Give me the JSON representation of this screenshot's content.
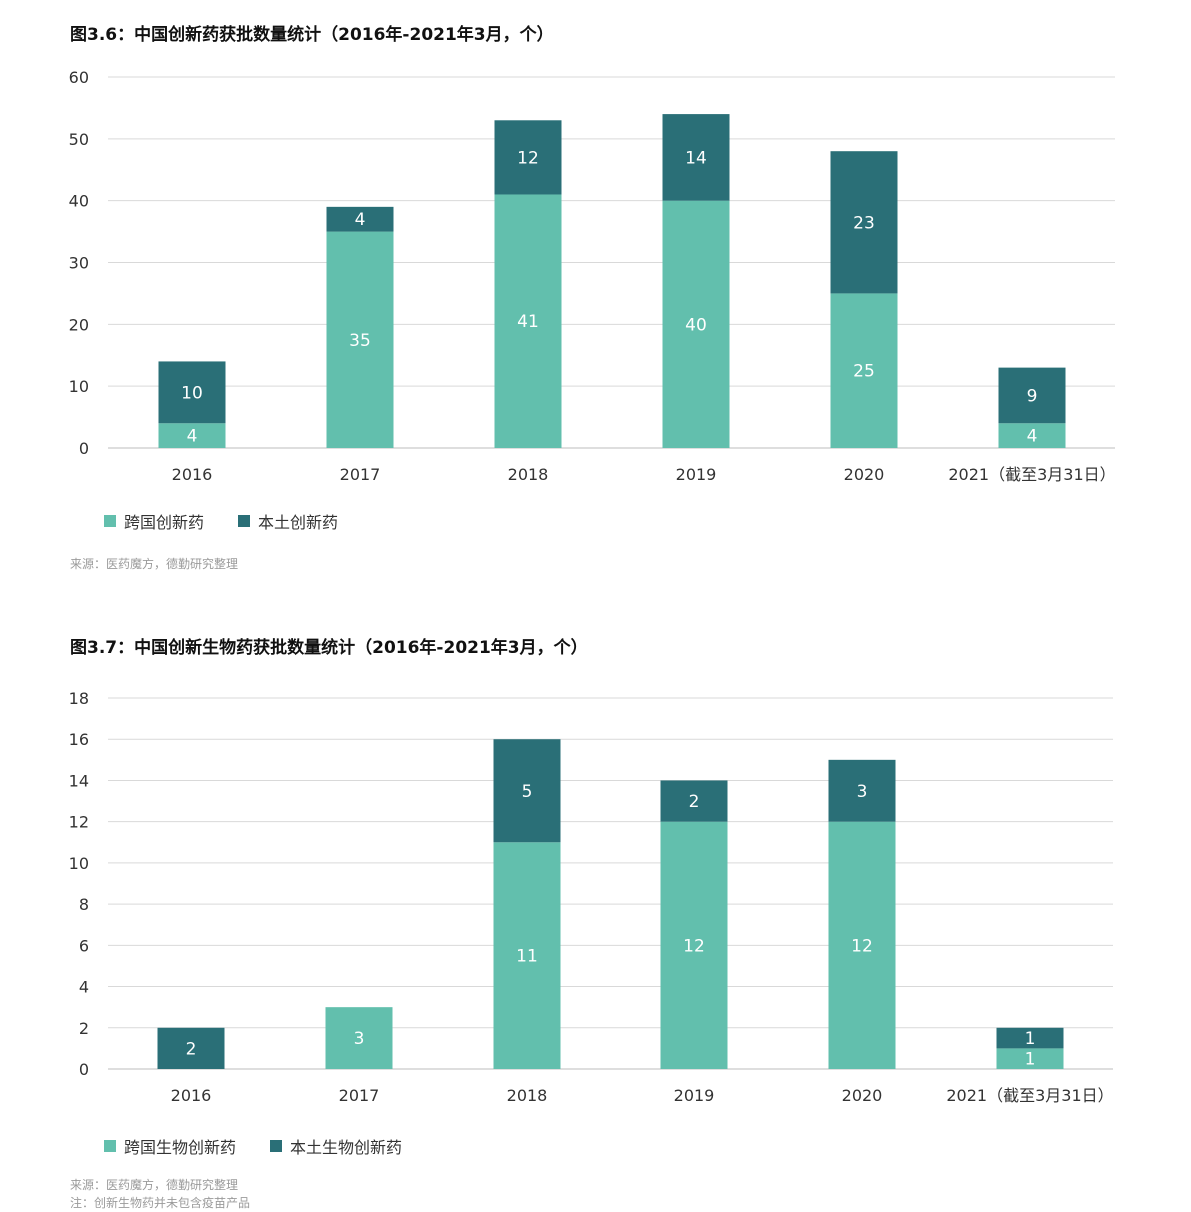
{
  "colors": {
    "multinational": "#62bfad",
    "domestic": "#2a6f77",
    "grid": "#d9d9d9",
    "axis_text": "#333333"
  },
  "chart_data": [
    {
      "type": "bar",
      "stacked": true,
      "title": "图3.6：中国创新药获批数量统计（2016年-2021年3月，个）",
      "categories": [
        "2016",
        "2017",
        "2018",
        "2019",
        "2020",
        "2021（截至3月31日）"
      ],
      "series": [
        {
          "name": "跨国创新药",
          "color_key": "multinational",
          "values": [
            4,
            35,
            41,
            40,
            25,
            4
          ]
        },
        {
          "name": "本土创新药",
          "color_key": "domestic",
          "values": [
            10,
            4,
            12,
            14,
            23,
            9
          ]
        }
      ],
      "data_labels": [
        [
          "4",
          "35",
          "41",
          "40",
          "25",
          "4"
        ],
        [
          "10",
          "4",
          "12",
          "14",
          "23",
          "9"
        ]
      ],
      "stack_tops": [
        14,
        39,
        53,
        54,
        48,
        10
      ],
      "ylim": [
        0,
        60
      ],
      "yticks": [
        0,
        10,
        20,
        30,
        40,
        50,
        60
      ],
      "grid": true,
      "legend_position": "bottom-left",
      "source_note": "来源：医药魔方，德勤研究整理"
    },
    {
      "type": "bar",
      "stacked": true,
      "title": "图3.7：中国创新生物药获批数量统计（2016年-2021年3月，个）",
      "categories": [
        "2016",
        "2017",
        "2018",
        "2019",
        "2020",
        "2021（截至3月31日）"
      ],
      "series": [
        {
          "name": "跨国生物创新药",
          "color_key": "multinational",
          "values": [
            0,
            3,
            11,
            12,
            12,
            1
          ]
        },
        {
          "name": "本土生物创新药",
          "color_key": "domestic",
          "values": [
            2,
            0,
            5,
            2,
            3,
            1
          ]
        }
      ],
      "data_labels": [
        [
          "",
          "3",
          "11",
          "12",
          "12",
          "1"
        ],
        [
          "2",
          "",
          "5",
          "2",
          "3",
          "1"
        ]
      ],
      "stack_tops": [
        2,
        3,
        16,
        14,
        15,
        2
      ],
      "ylim": [
        0,
        18
      ],
      "yticks": [
        0,
        2,
        4,
        6,
        8,
        10,
        12,
        14,
        16,
        18
      ],
      "grid": true,
      "legend_position": "bottom-left",
      "source_note": "来源：医药魔方，德勤研究整理",
      "extra_note": "注：创新生物药并未包含疫苗产品"
    }
  ]
}
